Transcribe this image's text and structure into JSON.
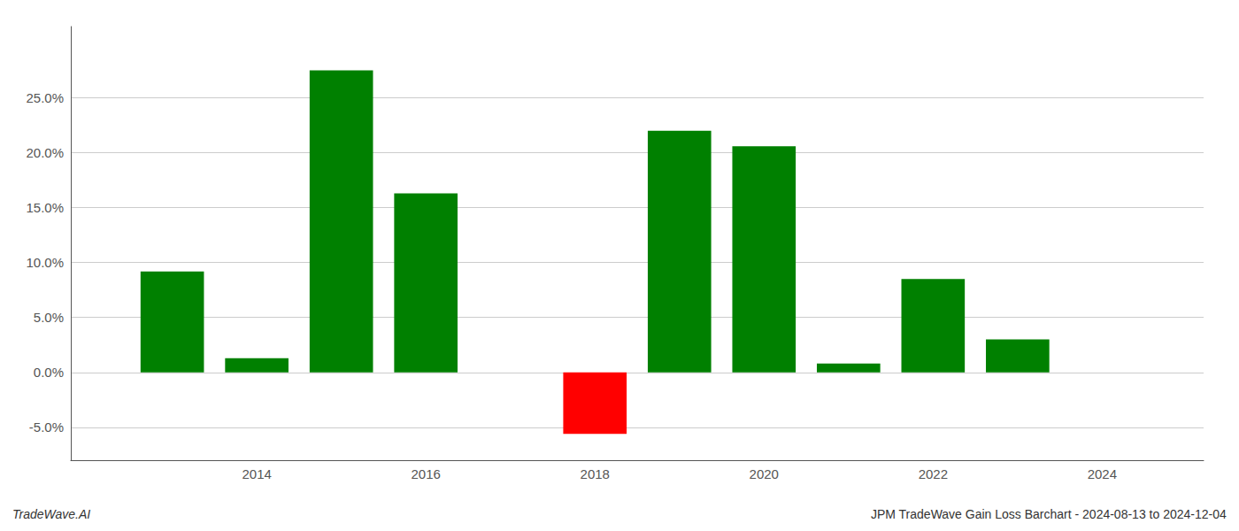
{
  "chart_data": {
    "type": "bar",
    "x": [
      2013,
      2014,
      2015,
      2016,
      2018,
      2019,
      2020,
      2021,
      2022,
      2023
    ],
    "values": [
      0.092,
      0.013,
      0.275,
      0.163,
      -0.056,
      0.22,
      0.206,
      0.008,
      0.085,
      0.03
    ],
    "colors": [
      "#008000",
      "#008000",
      "#008000",
      "#008000",
      "#ff0000",
      "#008000",
      "#008000",
      "#008000",
      "#008000",
      "#008000"
    ],
    "xlim": [
      2011.8,
      2025.2
    ],
    "xticks": [
      2014,
      2016,
      2018,
      2020,
      2022,
      2024
    ],
    "ylim": [
      -0.08,
      0.315
    ],
    "yticks": [
      {
        "value": -0.05,
        "label": "-5.0%"
      },
      {
        "value": 0.0,
        "label": "0.0%"
      },
      {
        "value": 0.05,
        "label": "5.0%"
      },
      {
        "value": 0.1,
        "label": "10.0%"
      },
      {
        "value": 0.15,
        "label": "15.0%"
      },
      {
        "value": 0.2,
        "label": "20.0%"
      },
      {
        "value": 0.25,
        "label": "25.0%"
      }
    ],
    "grid": true,
    "annotations": [
      "TradeWave.AI",
      "JPM TradeWave Gain Loss Barchart - 2024-08-13 to 2024-12-04"
    ]
  }
}
